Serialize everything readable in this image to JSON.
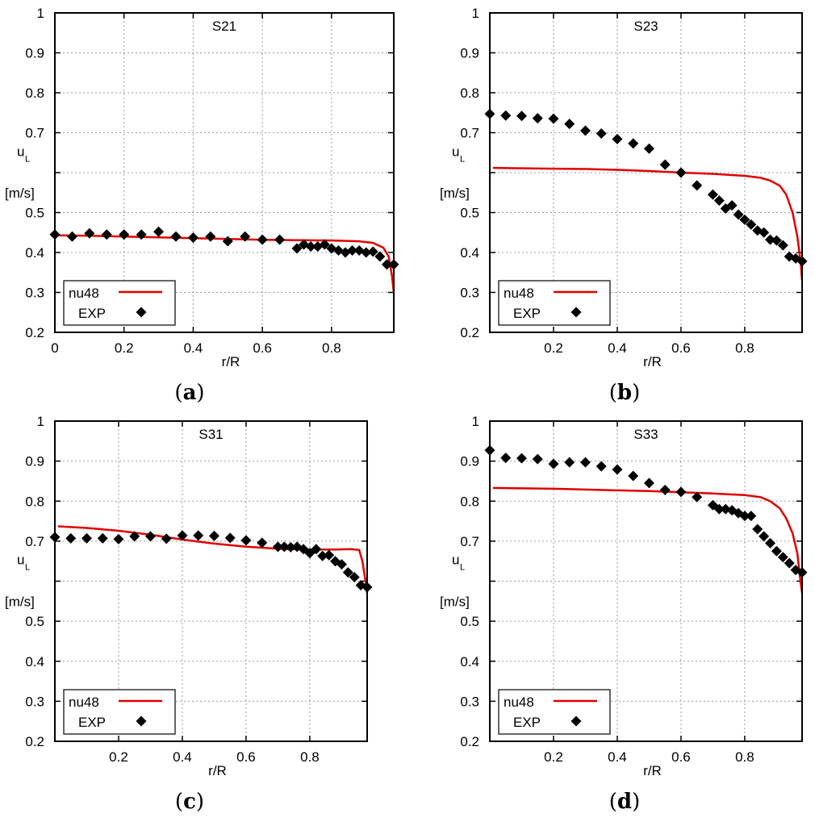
{
  "colors": {
    "model_line": "#e00000",
    "exp_marker": "#000000",
    "grid": "#9a9a9a"
  },
  "legend": {
    "model": "nu48",
    "exp": "EXP"
  },
  "chart_data": [
    {
      "type": "line",
      "title": "S21",
      "caption_letter": "a",
      "xlabel": "r/R",
      "ylabel": "u",
      "ylabel_sub": "L",
      "ylabel_unit": "[m/s]",
      "xlim": [
        0,
        0.98
      ],
      "ylim": [
        0.2,
        1.0
      ],
      "xticks": [
        0,
        0.2,
        0.4,
        0.6,
        0.8
      ],
      "xtick_labels": [
        "0",
        "0.2",
        "0.4",
        "0.6",
        "0.8"
      ],
      "yticks": [
        0.2,
        0.3,
        0.4,
        0.5,
        0.6,
        0.7,
        0.8,
        0.9,
        1.0
      ],
      "ytick_labels": [
        "0.2",
        "0.3",
        "0.4",
        "0.5",
        "",
        "0.7",
        "0.8",
        "0.9",
        "1"
      ],
      "grid": true,
      "legend_position": "bottom-left",
      "series": [
        {
          "name": "nu48",
          "style": "line",
          "x": [
            0,
            0.1,
            0.2,
            0.3,
            0.4,
            0.5,
            0.6,
            0.7,
            0.8,
            0.88,
            0.92,
            0.95,
            0.965,
            0.975,
            0.98
          ],
          "y": [
            0.443,
            0.442,
            0.44,
            0.438,
            0.436,
            0.434,
            0.432,
            0.431,
            0.43,
            0.428,
            0.424,
            0.412,
            0.39,
            0.34,
            0.3
          ]
        },
        {
          "name": "EXP",
          "style": "marker",
          "x": [
            0,
            0.05,
            0.1,
            0.15,
            0.2,
            0.25,
            0.3,
            0.35,
            0.4,
            0.45,
            0.5,
            0.55,
            0.6,
            0.65,
            0.7,
            0.72,
            0.74,
            0.76,
            0.78,
            0.8,
            0.82,
            0.84,
            0.86,
            0.88,
            0.9,
            0.92,
            0.94,
            0.96,
            0.98
          ],
          "y": [
            0.445,
            0.44,
            0.448,
            0.445,
            0.445,
            0.445,
            0.452,
            0.44,
            0.437,
            0.44,
            0.428,
            0.44,
            0.432,
            0.432,
            0.41,
            0.42,
            0.415,
            0.415,
            0.42,
            0.41,
            0.405,
            0.4,
            0.405,
            0.405,
            0.4,
            0.402,
            0.39,
            0.37,
            0.37
          ]
        }
      ]
    },
    {
      "type": "line",
      "title": "S23",
      "caption_letter": "b",
      "xlabel": "r/R",
      "ylabel": "u",
      "ylabel_sub": "L",
      "ylabel_unit": "[m/s]",
      "xlim": [
        0,
        0.98
      ],
      "ylim": [
        0.2,
        1.0
      ],
      "xticks": [
        0.2,
        0.4,
        0.6,
        0.8
      ],
      "xtick_labels": [
        "0.2",
        "0.4",
        "0.6",
        "0.8"
      ],
      "yticks": [
        0.2,
        0.3,
        0.4,
        0.5,
        0.6,
        0.7,
        0.8,
        0.9,
        1.0
      ],
      "ytick_labels": [
        "0.2",
        "0.3",
        "0.4",
        "0.5",
        "",
        "0.7",
        "0.8",
        "0.9",
        "1"
      ],
      "grid": true,
      "legend_position": "bottom-left",
      "series": [
        {
          "name": "nu48",
          "style": "line",
          "x": [
            0.01,
            0.1,
            0.2,
            0.3,
            0.4,
            0.5,
            0.6,
            0.7,
            0.8,
            0.85,
            0.88,
            0.91,
            0.93,
            0.95,
            0.965,
            0.975,
            0.98
          ],
          "y": [
            0.612,
            0.611,
            0.61,
            0.609,
            0.607,
            0.604,
            0.6,
            0.597,
            0.592,
            0.587,
            0.58,
            0.567,
            0.545,
            0.5,
            0.44,
            0.38,
            0.33
          ]
        },
        {
          "name": "EXP",
          "style": "marker",
          "x": [
            0,
            0.05,
            0.1,
            0.15,
            0.2,
            0.25,
            0.3,
            0.35,
            0.4,
            0.45,
            0.5,
            0.55,
            0.6,
            0.65,
            0.7,
            0.72,
            0.74,
            0.76,
            0.78,
            0.8,
            0.82,
            0.84,
            0.86,
            0.88,
            0.9,
            0.92,
            0.94,
            0.96,
            0.98
          ],
          "y": [
            0.747,
            0.743,
            0.742,
            0.736,
            0.735,
            0.722,
            0.705,
            0.698,
            0.684,
            0.673,
            0.66,
            0.62,
            0.6,
            0.568,
            0.545,
            0.53,
            0.51,
            0.518,
            0.495,
            0.482,
            0.47,
            0.455,
            0.45,
            0.432,
            0.43,
            0.418,
            0.39,
            0.385,
            0.378
          ]
        }
      ]
    },
    {
      "type": "line",
      "title": "S31",
      "caption_letter": "c",
      "xlabel": "r/R",
      "ylabel": "u",
      "ylabel_sub": "L",
      "ylabel_unit": "[m/s]",
      "xlim": [
        0,
        0.98
      ],
      "ylim": [
        0.2,
        1.0
      ],
      "xticks": [
        0.2,
        0.4,
        0.6,
        0.8
      ],
      "xtick_labels": [
        "0.2",
        "0.4",
        "0.6",
        "0.8"
      ],
      "yticks": [
        0.2,
        0.3,
        0.4,
        0.5,
        0.6,
        0.7,
        0.8,
        0.9,
        1.0
      ],
      "ytick_labels": [
        "0.2",
        "0.3",
        "0.4",
        "0.5",
        "",
        "0.7",
        "0.8",
        "0.9",
        "1"
      ],
      "grid": true,
      "legend_position": "bottom-left",
      "series": [
        {
          "name": "nu48",
          "style": "line",
          "x": [
            0.01,
            0.1,
            0.2,
            0.3,
            0.4,
            0.5,
            0.6,
            0.7,
            0.8,
            0.88,
            0.93,
            0.955,
            0.965,
            0.975,
            0.98
          ],
          "y": [
            0.737,
            0.733,
            0.726,
            0.716,
            0.704,
            0.694,
            0.686,
            0.681,
            0.679,
            0.679,
            0.68,
            0.678,
            0.65,
            0.6,
            0.57
          ]
        },
        {
          "name": "EXP",
          "style": "marker",
          "x": [
            0,
            0.05,
            0.1,
            0.15,
            0.2,
            0.25,
            0.3,
            0.35,
            0.4,
            0.45,
            0.5,
            0.55,
            0.6,
            0.65,
            0.7,
            0.72,
            0.74,
            0.76,
            0.78,
            0.8,
            0.82,
            0.84,
            0.86,
            0.88,
            0.9,
            0.92,
            0.94,
            0.96,
            0.98
          ],
          "y": [
            0.71,
            0.707,
            0.707,
            0.707,
            0.705,
            0.712,
            0.712,
            0.706,
            0.714,
            0.714,
            0.713,
            0.708,
            0.702,
            0.696,
            0.686,
            0.686,
            0.685,
            0.686,
            0.68,
            0.67,
            0.68,
            0.663,
            0.665,
            0.65,
            0.642,
            0.622,
            0.61,
            0.59,
            0.585
          ]
        }
      ]
    },
    {
      "type": "line",
      "title": "S33",
      "caption_letter": "d",
      "xlabel": "r/R",
      "ylabel": "u",
      "ylabel_sub": "L",
      "ylabel_unit": "[m/s]",
      "xlim": [
        0,
        0.98
      ],
      "ylim": [
        0.2,
        1.0
      ],
      "xticks": [
        0.2,
        0.4,
        0.6,
        0.8
      ],
      "xtick_labels": [
        "0.2",
        "0.4",
        "0.6",
        "0.8"
      ],
      "yticks": [
        0.2,
        0.3,
        0.4,
        0.5,
        0.6,
        0.7,
        0.8,
        0.9,
        1.0
      ],
      "ytick_labels": [
        "0.2",
        "0.3",
        "0.4",
        "0.5",
        "",
        "0.7",
        "0.8",
        "0.9",
        "1"
      ],
      "grid": true,
      "legend_position": "bottom-left",
      "series": [
        {
          "name": "nu48",
          "style": "line",
          "x": [
            0.01,
            0.1,
            0.2,
            0.3,
            0.4,
            0.5,
            0.6,
            0.7,
            0.8,
            0.85,
            0.88,
            0.91,
            0.93,
            0.95,
            0.965,
            0.975,
            0.98
          ],
          "y": [
            0.833,
            0.832,
            0.831,
            0.829,
            0.827,
            0.825,
            0.822,
            0.819,
            0.815,
            0.81,
            0.8,
            0.782,
            0.757,
            0.72,
            0.67,
            0.6,
            0.57
          ]
        },
        {
          "name": "EXP",
          "style": "marker",
          "x": [
            0,
            0.05,
            0.1,
            0.15,
            0.2,
            0.25,
            0.3,
            0.35,
            0.4,
            0.45,
            0.5,
            0.55,
            0.6,
            0.65,
            0.7,
            0.72,
            0.74,
            0.76,
            0.78,
            0.8,
            0.82,
            0.84,
            0.86,
            0.88,
            0.9,
            0.92,
            0.94,
            0.96,
            0.98
          ],
          "y": [
            0.927,
            0.908,
            0.907,
            0.905,
            0.893,
            0.897,
            0.897,
            0.887,
            0.879,
            0.863,
            0.845,
            0.828,
            0.823,
            0.81,
            0.79,
            0.78,
            0.78,
            0.777,
            0.77,
            0.763,
            0.763,
            0.73,
            0.712,
            0.695,
            0.675,
            0.66,
            0.645,
            0.628,
            0.622
          ]
        }
      ]
    }
  ]
}
